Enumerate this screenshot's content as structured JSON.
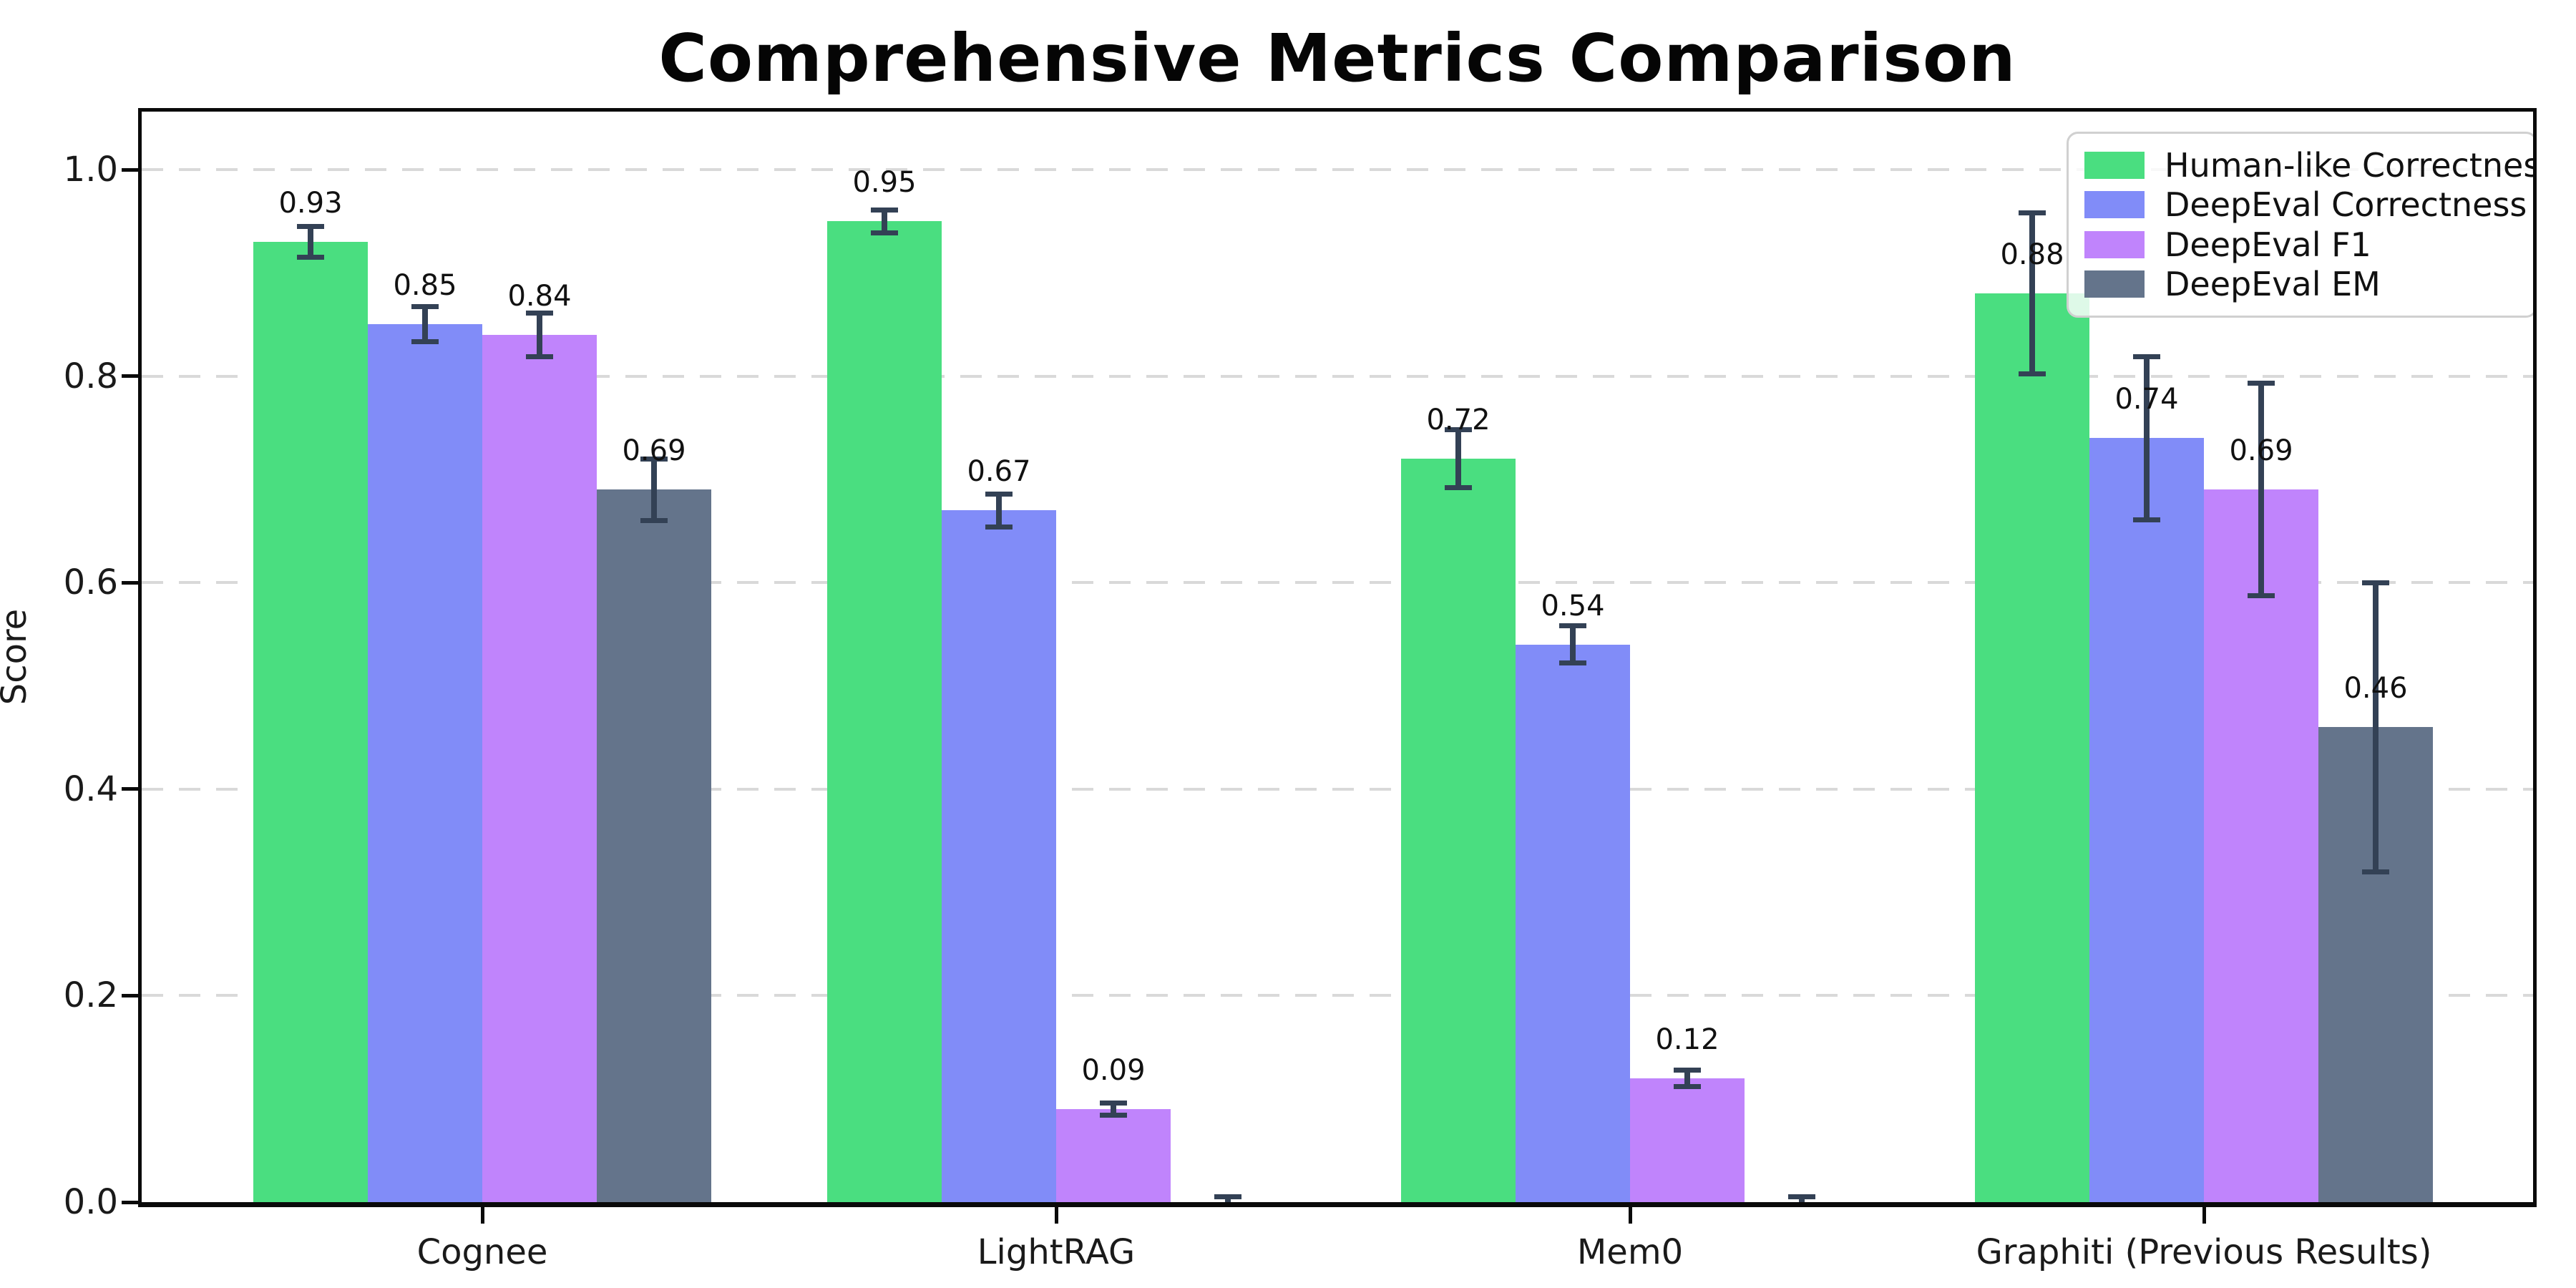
{
  "chart_data": {
    "type": "bar",
    "title": "Comprehensive Metrics Comparison",
    "ylabel": "Score",
    "xlabel": "",
    "categories": [
      "Cognee",
      "LightRAG",
      "Mem0",
      "Graphiti (Previous Results)"
    ],
    "yticks": [
      "0.0",
      "0.2",
      "0.4",
      "0.6",
      "0.8",
      "1.0"
    ],
    "ytick_values": [
      0.0,
      0.2,
      0.4,
      0.6,
      0.8,
      1.0
    ],
    "ylim": [
      0.0,
      1.056
    ],
    "grid": "horizontal-dashed",
    "legend_position": "upper right",
    "error_bar_color": "#334155",
    "gridline_color": "#d9d9d9",
    "series": [
      {
        "name": "Human-like Correctness",
        "color": "#4ade80",
        "values": [
          0.93,
          0.95,
          0.72,
          0.88
        ],
        "errors": [
          0.015,
          0.011,
          0.028,
          0.078
        ],
        "labels": [
          "0.93",
          "0.95",
          "0.72",
          "0.88"
        ]
      },
      {
        "name": "DeepEval Correctness",
        "color": "#818cf8",
        "values": [
          0.85,
          0.67,
          0.54,
          0.74
        ],
        "errors": [
          0.017,
          0.016,
          0.018,
          0.079
        ],
        "labels": [
          "0.85",
          "0.67",
          "0.54",
          "0.74"
        ]
      },
      {
        "name": "DeepEval F1",
        "color": "#c084fc",
        "values": [
          0.84,
          0.09,
          0.12,
          0.69
        ],
        "errors": [
          0.021,
          0.006,
          0.008,
          0.103
        ],
        "labels": [
          "0.84",
          "0.09",
          "0.12",
          "0.69"
        ]
      },
      {
        "name": "DeepEval EM",
        "color": "#64748b",
        "values": [
          0.69,
          0.0,
          0.0,
          0.46
        ],
        "errors": [
          0.03,
          0.005,
          0.005,
          0.14
        ],
        "labels": [
          "0.69",
          "",
          "",
          "0.46"
        ]
      }
    ]
  }
}
